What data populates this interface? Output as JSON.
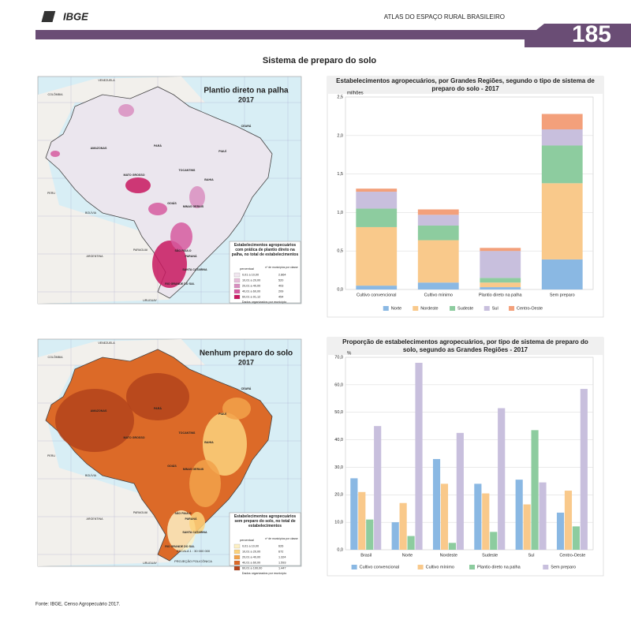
{
  "header": {
    "logo": "IBGE",
    "atlas": "ATLAS DO ESPAÇO RURAL BRASILEIRO",
    "page": "185"
  },
  "section_title": "Sistema de preparo do solo",
  "maps": [
    {
      "title": "Plantio direto na palha",
      "year": "2017",
      "legend_title": "Estabelecimentos agropecuários com prática de plantio direto na palha, no total de estabelecimentos",
      "col_percent": "percentual",
      "col_count": "nº de municípios por classe",
      "classes": [
        "0,01 a 10,00",
        "10,01 a 20,00",
        "20,01 a 40,00",
        "40,01 a 60,00",
        "60,01 a 91,12"
      ],
      "counts": [
        "2.864",
        "520",
        "403",
        "209",
        "454"
      ],
      "colors": [
        "#f1e6ef",
        "#e6bcd8",
        "#d98ec0",
        "#d65a9f",
        "#c8175f"
      ],
      "note": "Dados organizados por município",
      "place_labels": [
        "AMAZONAS",
        "PARÁ",
        "BAHIA",
        "MATO GROSSO",
        "GOIÁS",
        "MINAS GERAIS",
        "SÃO PAULO",
        "PARANÁ",
        "SANTA CATARINA",
        "RIO GRANDE DO SUL",
        "CEARÁ",
        "PIAUÍ",
        "TOCANTINS",
        "VENEZUELA",
        "COLÔMBIA",
        "PERU",
        "BOLÍVIA",
        "PARAGUAI",
        "ARGENTINA",
        "URUGUAY"
      ]
    },
    {
      "title": "Nenhum preparo do solo",
      "year": "2017",
      "legend_title": "Estabelecimentos agropecuários sem preparo do solo, no total de estabelecimentos",
      "col_percent": "percentual",
      "col_count": "nº de municípios por classe",
      "classes": [
        "0,01 a 10,00",
        "10,01 a 20,00",
        "20,01 a 40,00",
        "40,01 a 60,00",
        "60,01 a 100,00"
      ],
      "counts": [
        "626",
        "672",
        "1.324",
        "1.593",
        "1.447"
      ],
      "colors": [
        "#fdf0c4",
        "#fbd27c",
        "#f2a24a",
        "#dc6a28",
        "#b3431b"
      ],
      "note": "Dados organizados por município",
      "scale": "ESCALA 1 : 30 000 000",
      "projection": "PROJEÇÃO POLICÔNICA",
      "place_labels": [
        "AMAZONAS",
        "PARÁ",
        "BAHIA",
        "MATO GROSSO",
        "GOIÁS",
        "MINAS GERAIS",
        "SÃO PAULO",
        "PARANÁ",
        "SANTA CATARINA",
        "RIO GRANDE DO SUL",
        "CEARÁ",
        "PIAUÍ",
        "TOCANTINS",
        "VENEZUELA",
        "COLÔMBIA",
        "PERU",
        "BOLÍVIA",
        "PARAGUAI",
        "ARGENTINA",
        "URUGUAY"
      ]
    }
  ],
  "chart_data": [
    {
      "type": "bar",
      "stacked": true,
      "title": "Estabelecimentos agropecuários, por Grandes Regiões, segundo o tipo de sistema de preparo do solo - 2017",
      "y_label": "milhões",
      "categories": [
        "Cultivo convencional",
        "Cultivo mínimo",
        "Plantio direto na palha",
        "Sem preparo"
      ],
      "series": [
        {
          "name": "Norte",
          "color": "#8ab8e3",
          "values": [
            0.05,
            0.09,
            0.03,
            0.39
          ]
        },
        {
          "name": "Nordeste",
          "color": "#f9c98b",
          "values": [
            0.76,
            0.55,
            0.06,
            0.99
          ]
        },
        {
          "name": "Sudeste",
          "color": "#8dcc9f",
          "values": [
            0.24,
            0.19,
            0.06,
            0.49
          ]
        },
        {
          "name": "Sul",
          "color": "#c8bfdd",
          "values": [
            0.22,
            0.14,
            0.35,
            0.21
          ]
        },
        {
          "name": "Centro-Oeste",
          "color": "#f3a07b",
          "values": [
            0.04,
            0.07,
            0.04,
            0.2
          ]
        }
      ],
      "ylim": [
        0,
        2.5
      ],
      "yticks": [
        {
          "value": 0,
          "label": "0,0"
        },
        {
          "value": 0.5,
          "label": "0,5"
        },
        {
          "value": 1,
          "label": "1,0"
        },
        {
          "value": 1.5,
          "label": "1,5"
        },
        {
          "value": 2,
          "label": "2,0"
        },
        {
          "value": 2.5,
          "label": "2,5"
        }
      ],
      "grid": true,
      "legend": "bottom"
    },
    {
      "type": "bar",
      "stacked": false,
      "title": "Proporção de estabelecimentos agropecuários, por tipo de sistema de preparo do solo, segundo as Grandes Regiões - 2017",
      "y_label": "%",
      "categories": [
        "Brasil",
        "Norte",
        "Nordeste",
        "Sudeste",
        "Sul",
        "Centro-Oeste"
      ],
      "series": [
        {
          "name": "Cultivo convencional",
          "color": "#8ab8e3",
          "values": [
            26,
            10,
            33,
            24,
            25.5,
            13.5
          ]
        },
        {
          "name": "Cultivo mínimo",
          "color": "#f9c98b",
          "values": [
            21,
            17,
            24,
            20.5,
            16.5,
            21.5
          ]
        },
        {
          "name": "Plantio direto na palha",
          "color": "#8dcc9f",
          "values": [
            11,
            5,
            2.5,
            6.5,
            43.5,
            8.5
          ]
        },
        {
          "name": "Sem preparo",
          "color": "#c8bfdd",
          "values": [
            45,
            68,
            42.5,
            51.5,
            24.5,
            58.5
          ]
        }
      ],
      "ylim": [
        0,
        70
      ],
      "yticks": [
        {
          "value": 0,
          "label": "0,0"
        },
        {
          "value": 10,
          "label": "10,0"
        },
        {
          "value": 20,
          "label": "20,0"
        },
        {
          "value": 30,
          "label": "30,0"
        },
        {
          "value": 40,
          "label": "40,0"
        },
        {
          "value": 50,
          "label": "50,0"
        },
        {
          "value": 60,
          "label": "60,0"
        },
        {
          "value": 70,
          "label": "70,0"
        }
      ],
      "grid": true,
      "legend": "bottom"
    }
  ],
  "footer": "Fonte: IBGE, Censo Agropecuário 2017."
}
